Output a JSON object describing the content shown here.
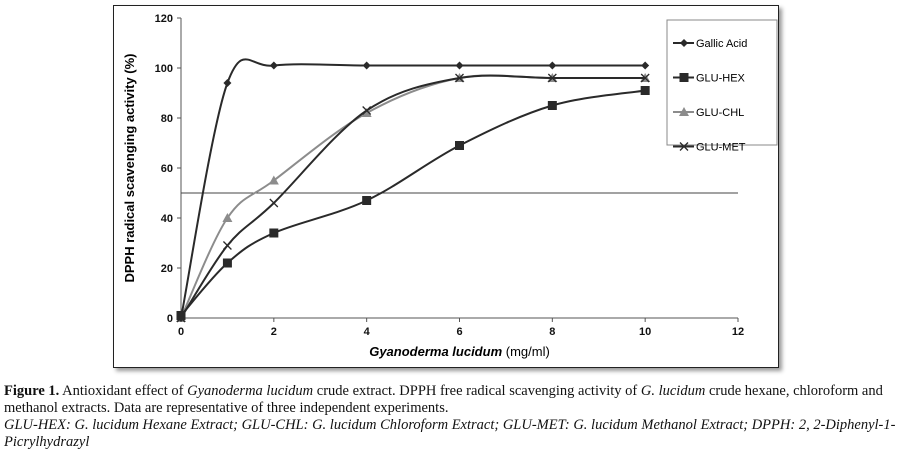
{
  "chart_data": {
    "type": "line",
    "xlabel_italic": "Gyanoderma lucidum",
    "xlabel_unit": "(mg/ml)",
    "ylabel": "DPPH radical scavenging activity (%)",
    "xlim": [
      0,
      12
    ],
    "ylim": [
      0,
      120
    ],
    "xticks": [
      0,
      2,
      4,
      6,
      8,
      10,
      12
    ],
    "yticks": [
      0,
      20,
      40,
      60,
      80,
      100,
      120
    ],
    "x": [
      0,
      1,
      2,
      4,
      6,
      8,
      10
    ],
    "reference_line": 50,
    "legend_position": "top-right",
    "series": [
      {
        "name": "Gallic Acid",
        "marker": "diamond",
        "color": "#2a2a2a",
        "values": [
          0,
          94,
          101,
          101,
          101,
          101,
          101
        ]
      },
      {
        "name": "GLU-HEX",
        "marker": "square",
        "color": "#2a2a2a",
        "values": [
          1,
          22,
          34,
          47,
          69,
          85,
          91
        ]
      },
      {
        "name": "GLU-CHL",
        "marker": "triangle",
        "color": "#8c8c8c",
        "values": [
          0,
          40,
          55,
          82,
          96,
          96,
          96
        ]
      },
      {
        "name": "GLU-MET",
        "marker": "x",
        "color": "#2a2a2a",
        "values": [
          0,
          29,
          46,
          83,
          96,
          96,
          96
        ]
      }
    ]
  },
  "caption": {
    "label": "Figure 1.",
    "t1": " Antioxidant effect of ",
    "i1": "Gyanoderma lucidum",
    "t2": " crude extract. DPPH free radical scavenging activity of ",
    "i2": "G. lucidum",
    "t3": " crude hexane, chloroform and methanol extracts. Data are representative of three independent experiments.",
    "abbrev": "GLU-HEX: G. lucidum Hexane Extract; GLU-CHL: G. lucidum Chloroform Extract; GLU-MET: G. lucidum Methanol Extract; DPPH: 2, 2-Diphenyl-1-Picrylhydrazyl"
  }
}
